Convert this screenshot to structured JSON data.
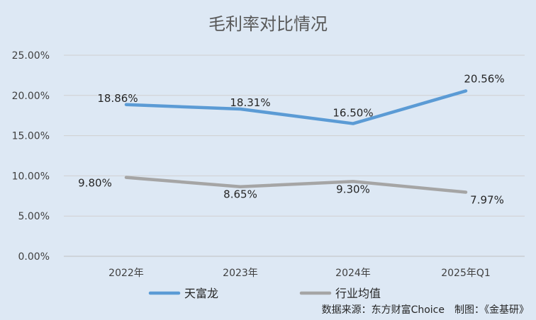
{
  "chart_data": {
    "type": "line",
    "title": "毛利率对比情况",
    "categories": [
      "2022年",
      "2023年",
      "2024年",
      "2025年Q1"
    ],
    "ylim": [
      0,
      25
    ],
    "yticks": [
      "0.00%",
      "5.00%",
      "10.00%",
      "15.00%",
      "20.00%",
      "25.00%"
    ],
    "grid": true,
    "legend_position": "bottom",
    "series": [
      {
        "name": "天富龙",
        "values": [
          18.86,
          18.31,
          16.5,
          20.56
        ],
        "labels": [
          "18.86%",
          "18.31%",
          "16.50%",
          "20.56%"
        ],
        "color": "#5b9bd5"
      },
      {
        "name": "行业均值",
        "values": [
          9.8,
          8.65,
          9.3,
          7.97
        ],
        "labels": [
          "9.80%",
          "8.65%",
          "9.30%",
          "7.97%"
        ],
        "color": "#a5a5a5"
      }
    ],
    "source": "数据来源：东方财富Choice　制图：《金基研》"
  }
}
